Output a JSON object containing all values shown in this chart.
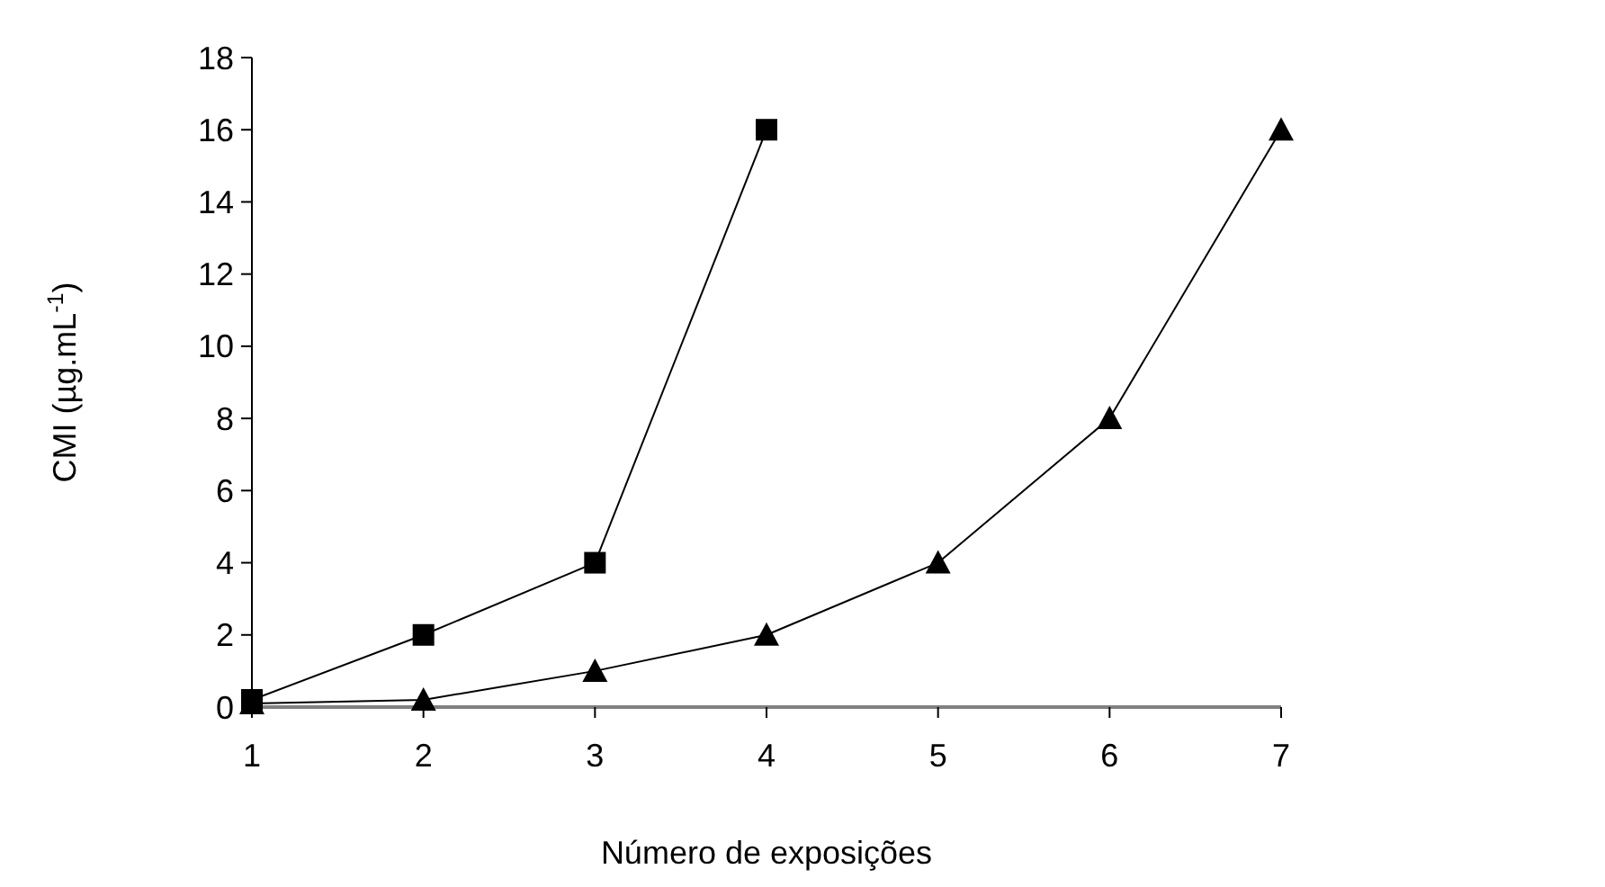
{
  "chart_data": {
    "type": "line",
    "xlabel": "Número de exposições",
    "ylabel": "CMI (µg.mL$^{-1}$)",
    "xlim": [
      1,
      7
    ],
    "ylim": [
      0,
      18
    ],
    "xticks": [
      1,
      2,
      3,
      4,
      5,
      6,
      7
    ],
    "yticks": [
      0,
      2,
      4,
      6,
      8,
      10,
      12,
      14,
      16,
      18
    ],
    "line_style": "solid",
    "series": [
      {
        "color": "#000000",
        "marker": "square",
        "x": [
          1,
          2,
          3,
          4
        ],
        "values": [
          0.2,
          2,
          4,
          16
        ]
      },
      {
        "color": "#000000",
        "marker": "triangle",
        "x": [
          1,
          2,
          3,
          4,
          5,
          6,
          7
        ],
        "values": [
          0.1,
          0.2,
          1,
          2,
          4,
          8,
          16
        ]
      }
    ]
  }
}
